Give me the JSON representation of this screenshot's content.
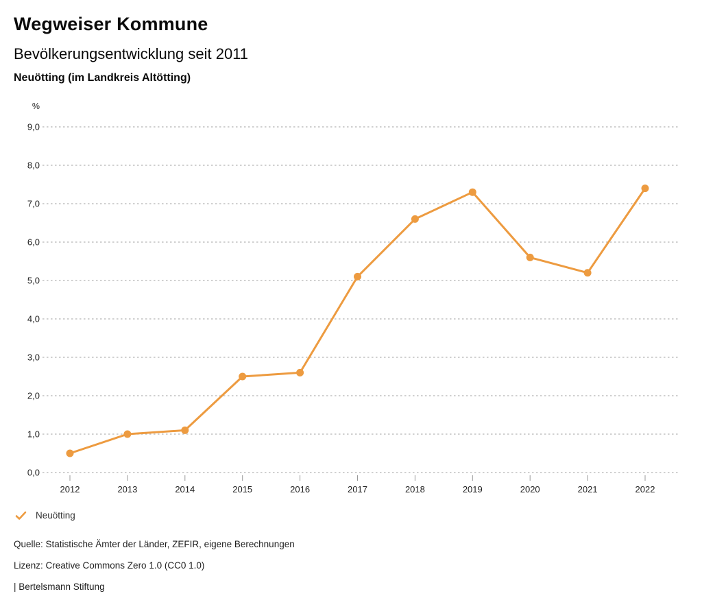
{
  "header": {
    "title": "Wegweiser Kommune",
    "subtitle": "Bevölkerungsentwicklung seit 2011",
    "region": "Neuötting (im Landkreis Altötting)"
  },
  "chart_data": {
    "type": "line",
    "title": "Bevölkerungsentwicklung seit 2011",
    "unit_label": "%",
    "categories": [
      "2012",
      "2013",
      "2014",
      "2015",
      "2016",
      "2017",
      "2018",
      "2019",
      "2020",
      "2021",
      "2022"
    ],
    "series": [
      {
        "name": "Neuötting",
        "color": "#ED9B40",
        "values": [
          0.5,
          1.0,
          1.1,
          2.5,
          2.6,
          5.1,
          6.6,
          7.3,
          5.6,
          5.2,
          7.4
        ]
      }
    ],
    "ylim": [
      0,
      9
    ],
    "ytick_step": 1,
    "ytick_labels": [
      "0,0",
      "1,0",
      "2,0",
      "3,0",
      "4,0",
      "5,0",
      "6,0",
      "7,0",
      "8,0",
      "9,0"
    ],
    "grid": "horizontal-dotted",
    "gridline_color": "#b3b3b3",
    "tick_color": "#999999",
    "axis_label_color": "#222222",
    "legend_position": "bottom-left"
  },
  "legend": {
    "items": [
      {
        "label": "Neuötting",
        "marker": "check",
        "color": "#ED9B40"
      }
    ]
  },
  "footer": {
    "source": "Quelle: Statistische Ämter der Länder, ZEFIR, eigene Berechnungen",
    "license": "Lizenz: Creative Commons Zero 1.0 (CC0 1.0)",
    "attribution": "| Bertelsmann Stiftung"
  }
}
